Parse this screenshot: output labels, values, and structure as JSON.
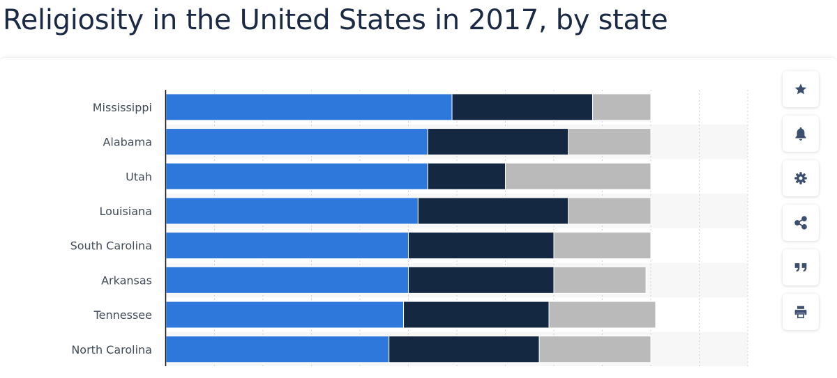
{
  "page": {
    "title": "Religiosity in the United States in 2017, by state"
  },
  "toolbar": {
    "buttons": [
      {
        "name": "favorite-button",
        "icon": "star-icon"
      },
      {
        "name": "notification-button",
        "icon": "bell-icon"
      },
      {
        "name": "settings-button",
        "icon": "gear-icon"
      },
      {
        "name": "share-button",
        "icon": "share-icon"
      },
      {
        "name": "cite-button",
        "icon": "quote-icon"
      },
      {
        "name": "print-button",
        "icon": "printer-icon"
      }
    ],
    "icon_color": "#3d4f6e"
  },
  "chart_data": {
    "type": "bar",
    "orientation": "horizontal",
    "stacked": true,
    "categories": [
      "Mississippi",
      "Alabama",
      "Utah",
      "Louisiana",
      "South Carolina",
      "Arkansas",
      "Tennessee",
      "North Carolina"
    ],
    "series": [
      {
        "color": "#2f78db",
        "values": [
          59,
          54,
          54,
          52,
          50,
          50,
          49,
          46
        ]
      },
      {
        "color": "#142842",
        "values": [
          29,
          29,
          16,
          31,
          30,
          30,
          30,
          31
        ]
      },
      {
        "color": "#bababa",
        "values": [
          12,
          17,
          30,
          17,
          20,
          19,
          22,
          23
        ]
      }
    ],
    "xlim": [
      0,
      120
    ],
    "gridlines_every": 10,
    "grid": true,
    "tick_labels_visible": false,
    "colors": {
      "band": "#f7f7f8",
      "grid": "#cfd3d8",
      "axis": "#111111"
    }
  }
}
